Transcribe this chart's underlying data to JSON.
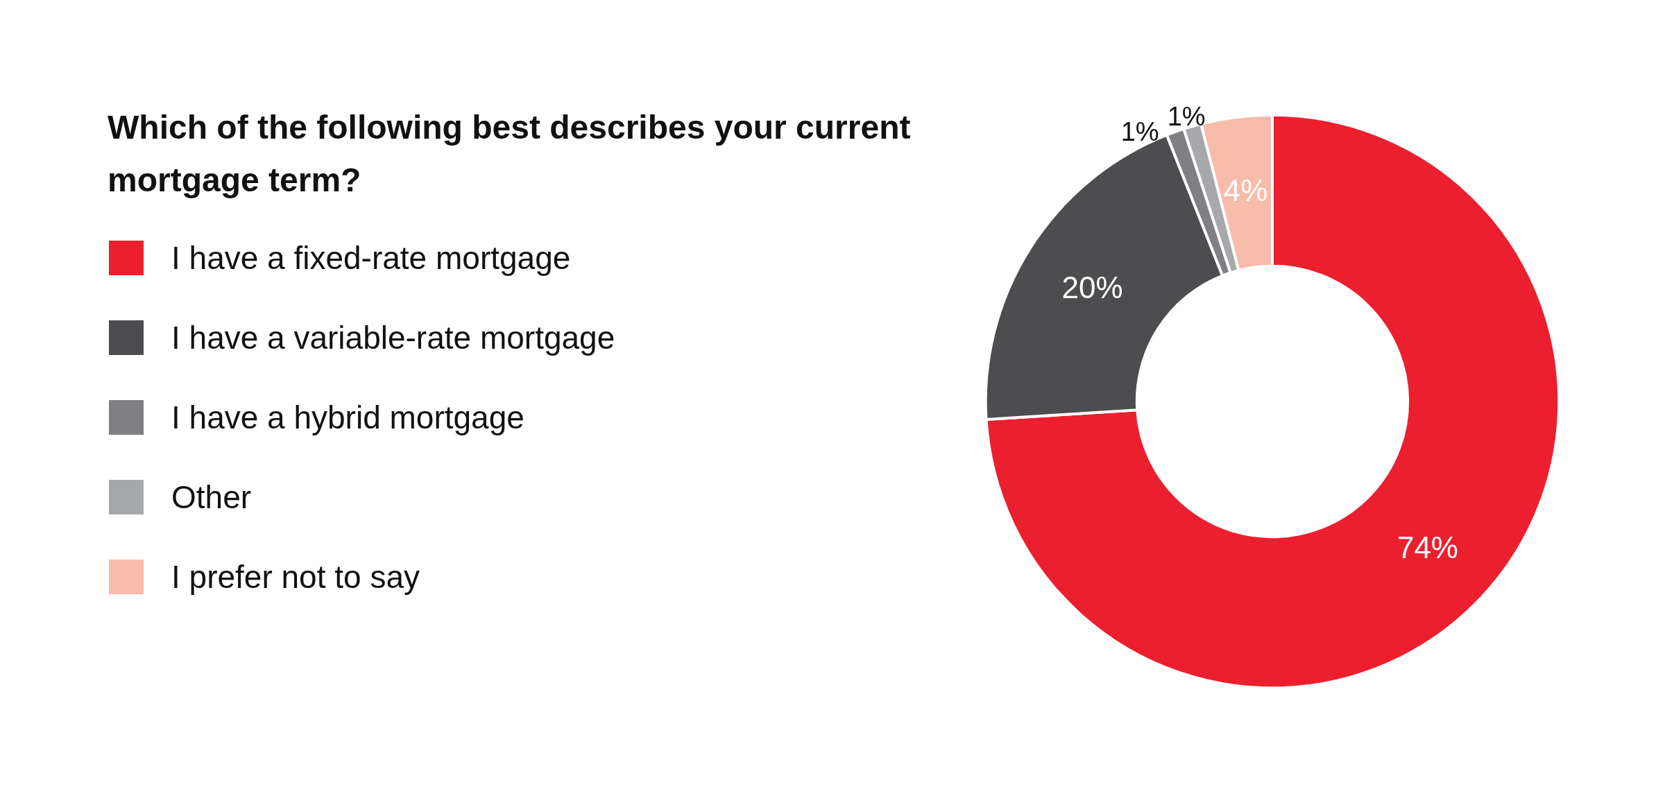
{
  "chart_data": {
    "type": "donut",
    "title": "Which of the following best describes your current mortgage term?",
    "categories": [
      "I have a fixed-rate mortgage",
      "I have a variable-rate mortgage",
      "I have a hybrid mortgage",
      "Other",
      "I prefer not to say"
    ],
    "values": [
      74,
      20,
      1,
      1,
      4
    ],
    "colors": [
      "#ec1f2e",
      "#4d4d4f",
      "#808084",
      "#a7a8ab",
      "#f8bcaa"
    ],
    "value_labels": [
      "74%",
      "20%",
      "1%",
      "1%",
      "4%"
    ],
    "legend": "left"
  }
}
